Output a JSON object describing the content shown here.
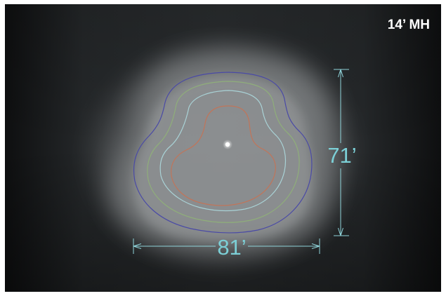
{
  "title": "14’ MH",
  "dimensions": {
    "height": {
      "label": "71’"
    },
    "width": {
      "label": "81’"
    }
  },
  "colors": {
    "background": "#1b1d1f",
    "title": "#ffffff",
    "dimension": "#7ccfd6",
    "dimension_line": "#8fd3d9",
    "contour_outer": "#4a4aa6",
    "contour_2": "#8fae7a",
    "contour_3": "#a9d2d6",
    "contour_inner": "#c0755a",
    "fixture": "#ffffff"
  }
}
